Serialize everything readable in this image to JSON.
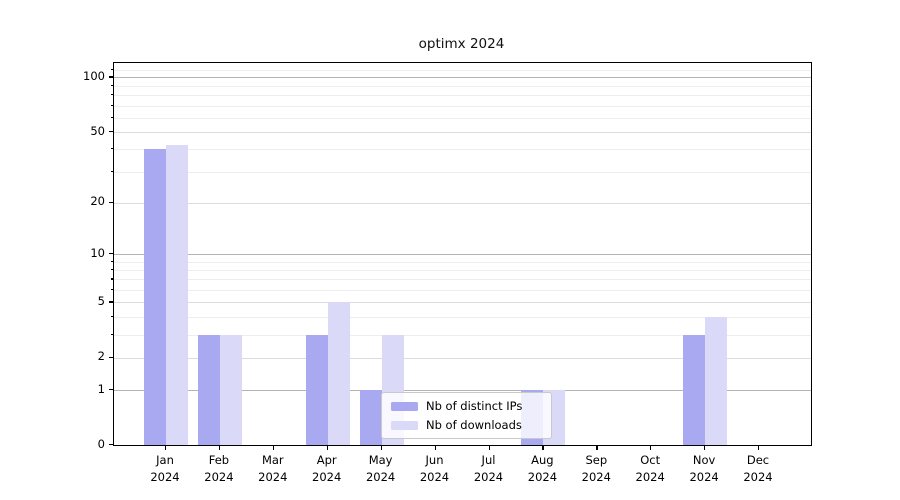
{
  "chart_data": {
    "type": "bar",
    "title": "optimx 2024",
    "categories": [
      "Jan 2024",
      "Feb 2024",
      "Mar 2024",
      "Apr 2024",
      "May 2024",
      "Jun 2024",
      "Jul 2024",
      "Aug 2024",
      "Sep 2024",
      "Oct 2024",
      "Nov 2024",
      "Dec 2024"
    ],
    "x_tick_months": [
      "Jan",
      "Feb",
      "Mar",
      "Apr",
      "May",
      "Jun",
      "Jul",
      "Aug",
      "Sep",
      "Oct",
      "Nov",
      "Dec"
    ],
    "x_tick_year": "2024",
    "series": [
      {
        "name": "Nb of distinct IPs",
        "color": "#a9a9f1",
        "values": [
          40,
          3,
          0,
          3,
          1,
          0,
          0,
          1,
          0,
          0,
          3,
          0
        ]
      },
      {
        "name": "Nb of downloads",
        "color": "#dadaf8",
        "values": [
          42,
          3,
          0,
          5,
          3,
          0,
          0,
          1,
          0,
          0,
          4,
          0
        ]
      }
    ],
    "xlabel": "",
    "ylabel": "",
    "y_scale": "log1p",
    "ylim": [
      0,
      120
    ],
    "y_ticks_labeled": [
      0,
      1,
      2,
      5,
      10,
      20,
      50,
      100
    ],
    "y_ticks_decade": [
      1,
      10,
      100
    ],
    "y_ticks_minor": [
      3,
      4,
      6,
      7,
      8,
      9,
      30,
      40,
      60,
      70,
      80,
      90,
      110
    ],
    "grid": "horizontal",
    "legend_position": "lower center"
  }
}
